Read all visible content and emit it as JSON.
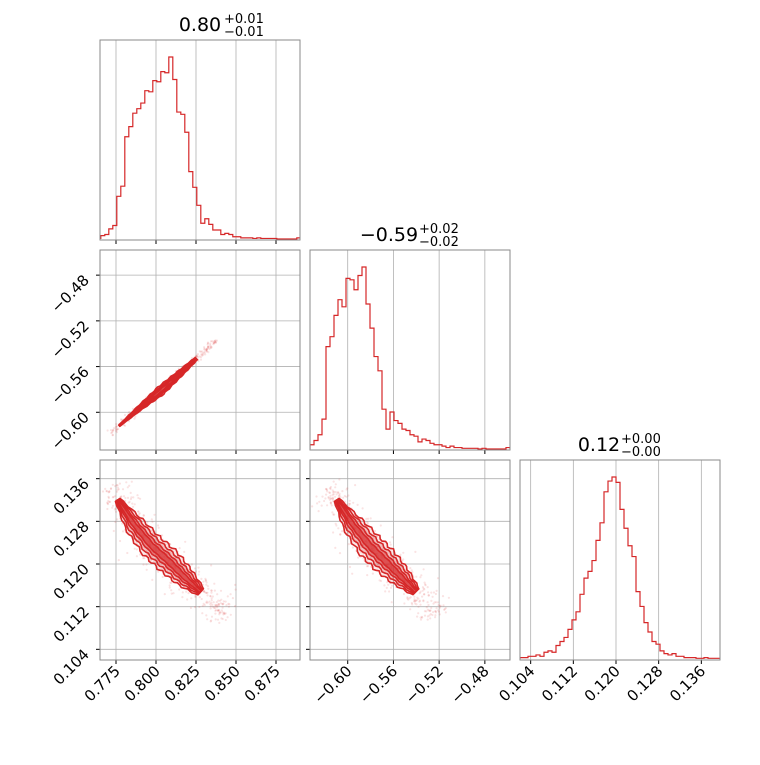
{
  "chart_data": {
    "type": "corner",
    "color": "#d62728",
    "grid": true,
    "parameters": [
      {
        "title_value": "0.80",
        "title_plus": "+0.01",
        "title_minus": "−0.01",
        "range": [
          0.765,
          0.89
        ]
      },
      {
        "title_value": "−0.59",
        "title_plus": "+0.02",
        "title_minus": "−0.02",
        "range": [
          -0.633,
          -0.458
        ]
      },
      {
        "title_value": "0.12",
        "title_plus": "+0.00",
        "title_minus": "−0.00",
        "range": [
          0.102,
          0.1395
        ]
      }
    ],
    "ticks": {
      "p0": {
        "values": [
          0.775,
          0.8,
          0.825,
          0.85,
          0.875
        ],
        "labels": [
          "0.775",
          "0.800",
          "0.825",
          "0.850",
          "0.875"
        ]
      },
      "p1": {
        "values": [
          -0.6,
          -0.56,
          -0.52,
          -0.48
        ],
        "labels": [
          "−0.60",
          "−0.56",
          "−0.52",
          "−0.48"
        ]
      },
      "p2": {
        "values": [
          0.104,
          0.112,
          0.12,
          0.128,
          0.136
        ],
        "labels": [
          "0.104",
          "0.112",
          "0.120",
          "0.128",
          "0.136"
        ]
      }
    },
    "histograms": [
      {
        "parameter": 0,
        "start": 0.7655,
        "bin_width": 0.0025,
        "counts": [
          0.3,
          0.4,
          0.9,
          1.2,
          3.8,
          4.7,
          9.1,
          10.0,
          11.2,
          11.6,
          12.1,
          13.2,
          13.1,
          14.1,
          14.0,
          14.9,
          14.8,
          16.2,
          14.2,
          11.3,
          11.1,
          9.5,
          6.0,
          4.6,
          3.0,
          1.4,
          1.8,
          1.3,
          0.8,
          0.8,
          0.4,
          0.5,
          0.4,
          0.2,
          0.2,
          0.1,
          0.1,
          0.1,
          0.05,
          0.1,
          0.05,
          0.05,
          0.05,
          0.05,
          0.0,
          0.0,
          0.0,
          0.0,
          0.0,
          0.1
        ]
      },
      {
        "parameter": 1,
        "start": -0.633,
        "bin_width": 0.0035,
        "counts": [
          0.3,
          0.6,
          1.0,
          2.1,
          7.2,
          7.9,
          9.4,
          10.5,
          10.0,
          12.0,
          11.9,
          11.2,
          12.2,
          12.8,
          10.2,
          8.5,
          6.5,
          5.5,
          2.8,
          1.4,
          2.6,
          2.0,
          1.8,
          1.4,
          1.3,
          1.0,
          0.9,
          0.5,
          0.7,
          0.6,
          0.4,
          0.3,
          0.3,
          0.2,
          0.1,
          0.2,
          0.1,
          0.1,
          0.05,
          0.05,
          0.05,
          0.05,
          0.0,
          0.05,
          0.0,
          0.0,
          0.0,
          0.0,
          0.0,
          0.1
        ]
      },
      {
        "parameter": 2,
        "start": 0.102,
        "bin_width": 0.00075,
        "counts": [
          0.1,
          0.1,
          0.2,
          0.2,
          0.3,
          0.2,
          0.5,
          0.6,
          0.5,
          1.0,
          1.3,
          1.6,
          2.2,
          2.9,
          3.5,
          4.8,
          6.0,
          6.5,
          7.3,
          8.8,
          10.1,
          12.4,
          13.2,
          13.5,
          13.1,
          11.1,
          9.7,
          8.4,
          7.6,
          5.0,
          3.9,
          2.7,
          2.0,
          1.3,
          1.1,
          0.6,
          0.4,
          0.3,
          0.4,
          0.2,
          0.2,
          0.1,
          0.1,
          0.1,
          0.05,
          0.05,
          0.1,
          0.05,
          0.05,
          0.05
        ]
      }
    ],
    "pairs": [
      {
        "x": 0,
        "y": 1,
        "ridge": [
          [
            0.776,
            -0.613
          ],
          [
            0.79,
            -0.596
          ],
          [
            0.803,
            -0.581
          ],
          [
            0.815,
            -0.566
          ],
          [
            0.826,
            -0.552
          ]
        ],
        "widths": [
          0.6,
          2.5,
          4.5,
          3.0,
          1.5
        ]
      },
      {
        "x": 0,
        "y": 2,
        "ridge": [
          [
            0.775,
            0.1325
          ],
          [
            0.786,
            0.1275
          ],
          [
            0.797,
            0.1235
          ],
          [
            0.808,
            0.1205
          ],
          [
            0.818,
            0.1175
          ],
          [
            0.829,
            0.1145
          ]
        ],
        "widths": [
          2.0,
          9.5,
          12.0,
          12.5,
          10.0,
          4.0
        ]
      },
      {
        "x": 1,
        "y": 2,
        "ridge": [
          [
            -0.611,
            0.1325
          ],
          [
            -0.596,
            0.1275
          ],
          [
            -0.581,
            0.1235
          ],
          [
            -0.567,
            0.1205
          ],
          [
            -0.553,
            0.1175
          ],
          [
            -0.539,
            0.1145
          ]
        ],
        "widths": [
          2.0,
          10.0,
          13.0,
          13.0,
          10.0,
          4.0
        ]
      }
    ]
  }
}
